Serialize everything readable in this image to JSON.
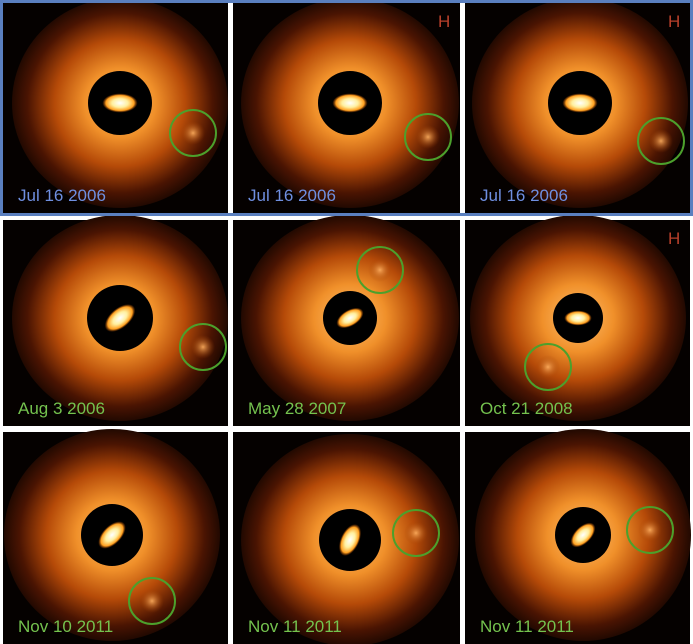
{
  "panels": [
    {
      "date": "Jul 16 2006"
    },
    {
      "date": "Jul 16 2006",
      "band": "H"
    },
    {
      "date": "Jul 16 2006",
      "band": "H"
    },
    {
      "date": "Aug 3 2006"
    },
    {
      "date": "May 28 2007"
    },
    {
      "date": "Oct 21 2008",
      "band": "H"
    },
    {
      "date": "Nov 10 2011"
    },
    {
      "date": "Nov 11 2011"
    },
    {
      "date": "Nov 11 2011"
    }
  ]
}
